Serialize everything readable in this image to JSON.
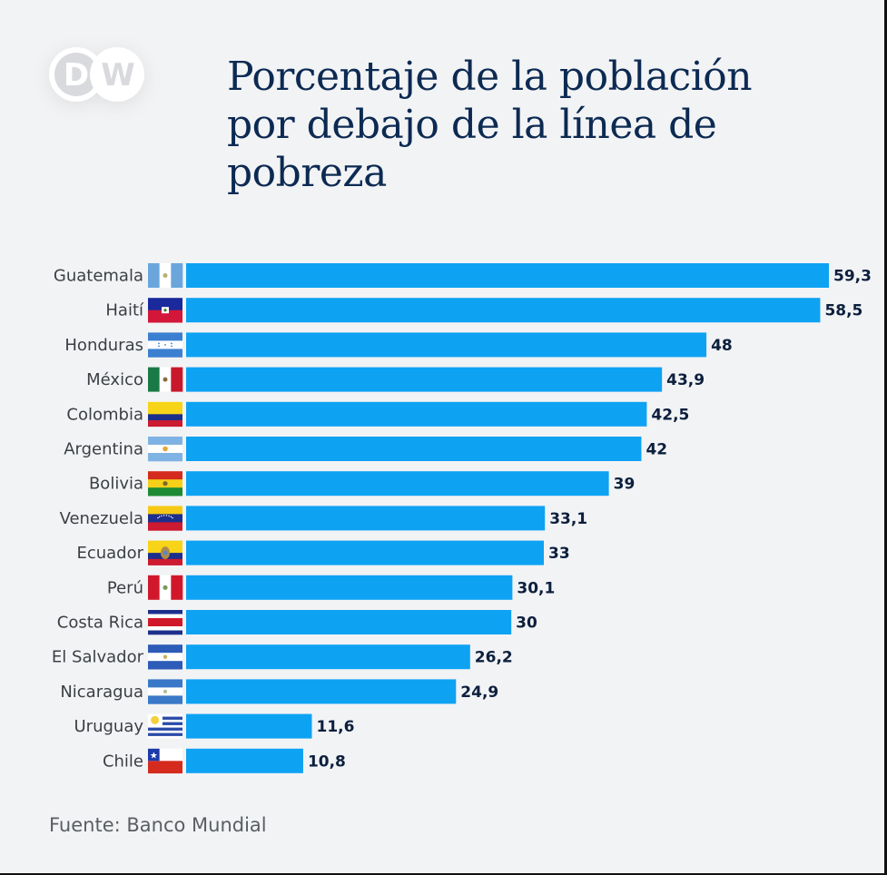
{
  "brand": {
    "logo_text": "DW"
  },
  "title": "Porcentaje de la población por debajo de la línea de pobreza",
  "source": "Fuente: Banco Mundial",
  "colors": {
    "bar": "#0ea2f3",
    "title": "#0c2a52",
    "background": "#f2f3f5"
  },
  "chart_data": {
    "type": "bar",
    "orientation": "horizontal",
    "title": "Porcentaje de la población por debajo de la línea de pobreza",
    "xlabel": "",
    "ylabel": "",
    "xlim": [
      0,
      59.3
    ],
    "grid": false,
    "legend": "none",
    "categories": [
      "Guatemala",
      "Haití",
      "Honduras",
      "México",
      "Colombia",
      "Argentina",
      "Bolivia",
      "Venezuela",
      "Ecuador",
      "Perú",
      "Costa Rica",
      "El Salvador",
      "Nicaragua",
      "Uruguay",
      "Chile"
    ],
    "values": [
      59.3,
      58.5,
      48,
      43.9,
      42.5,
      42,
      39,
      33.1,
      33,
      30.1,
      30,
      26.2,
      24.9,
      11.6,
      10.8
    ],
    "value_labels": [
      "59,3",
      "58,5",
      "48",
      "43,9",
      "42,5",
      "42",
      "39",
      "33,1",
      "33",
      "30,1",
      "30",
      "26,2",
      "24,9",
      "11,6",
      "10,8"
    ],
    "flags": [
      "guatemala-flag",
      "haiti-flag",
      "honduras-flag",
      "mexico-flag",
      "colombia-flag",
      "argentina-flag",
      "bolivia-flag",
      "venezuela-flag",
      "ecuador-flag",
      "peru-flag",
      "costa-rica-flag",
      "el-salvador-flag",
      "nicaragua-flag",
      "uruguay-flag",
      "chile-flag"
    ],
    "source": "Fuente: Banco Mundial"
  }
}
